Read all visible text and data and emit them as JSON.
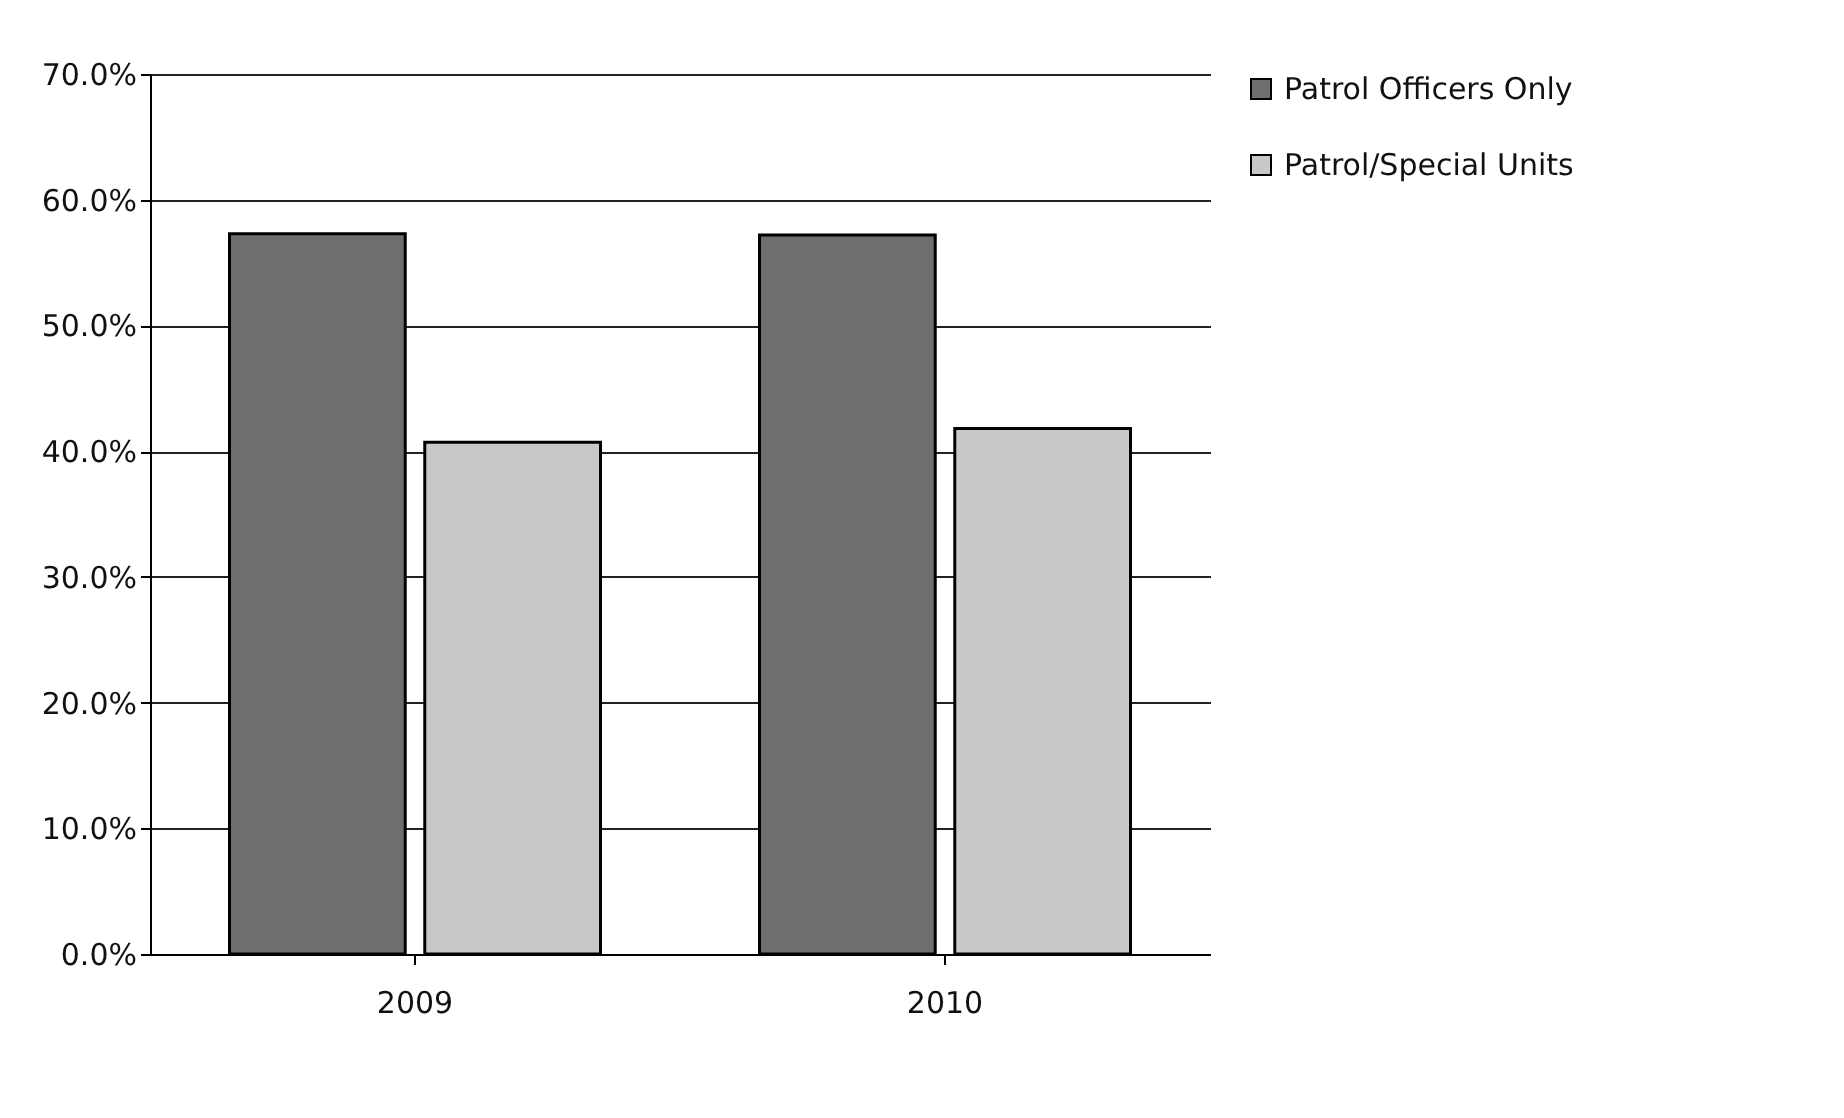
{
  "chart_data": {
    "type": "bar",
    "categories": [
      "2009",
      "2010"
    ],
    "series": [
      {
        "name": "Patrol Officers Only",
        "color": "#6e6e6e",
        "values": [
          57.3,
          57.2
        ]
      },
      {
        "name": "Patrol/Special Units",
        "color": "#c8c8c8",
        "values": [
          40.7,
          41.8
        ]
      }
    ],
    "ylim": [
      0,
      70
    ],
    "yticks": [
      {
        "value": 0,
        "label": "0.0%"
      },
      {
        "value": 10,
        "label": "10.0%"
      },
      {
        "value": 20,
        "label": "20.0%"
      },
      {
        "value": 30,
        "label": "30.0%"
      },
      {
        "value": 40,
        "label": "40.0%"
      },
      {
        "value": 50,
        "label": "50.0%"
      },
      {
        "value": 60,
        "label": "60.0%"
      },
      {
        "value": 70,
        "label": "70.0%"
      }
    ],
    "grid": "y",
    "legend": "right"
  }
}
